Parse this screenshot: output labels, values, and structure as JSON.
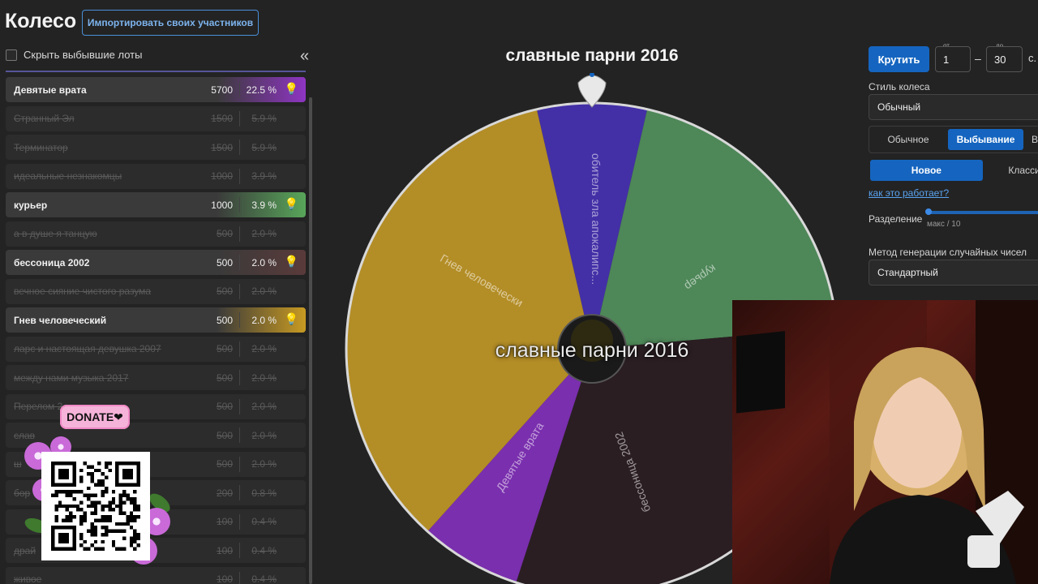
{
  "header": {
    "title": "Колесо",
    "import_label": "Импортировать своих участников"
  },
  "list_controls": {
    "hide_label": "Скрыть выбывшие лоты"
  },
  "lots": [
    {
      "name": "Девятые врата",
      "amount": "5700",
      "percent": "22.5 %",
      "active": true,
      "color": "#8e35c2"
    },
    {
      "name": "Странный Эл",
      "amount": "1500",
      "percent": "5.9 %",
      "active": false
    },
    {
      "name": "Терминатор",
      "amount": "1500",
      "percent": "5.9 %",
      "active": false
    },
    {
      "name": "идеальные незнакомцы",
      "amount": "1000",
      "percent": "3.9 %",
      "active": false
    },
    {
      "name": "курьер",
      "amount": "1000",
      "percent": "3.9 %",
      "active": true,
      "color": "#58a65a"
    },
    {
      "name": "а в душе я танцую",
      "amount": "500",
      "percent": "2.0 %",
      "active": false
    },
    {
      "name": "бессоница 2002",
      "amount": "500",
      "percent": "2.0 %",
      "active": true,
      "color": "#5a3a3a"
    },
    {
      "name": "вечное сияние чистого разума",
      "amount": "500",
      "percent": "2.0 %",
      "active": false
    },
    {
      "name": "Гнев человеческий",
      "amount": "500",
      "percent": "2.0 %",
      "active": true,
      "color": "#c89a22"
    },
    {
      "name": "ларс и настоящая девушка 2007",
      "amount": "500",
      "percent": "2.0 %",
      "active": false
    },
    {
      "name": "между нами музыка 2017",
      "amount": "500",
      "percent": "2.0 %",
      "active": false
    },
    {
      "name": "Перелом 2",
      "amount": "500",
      "percent": "2.0 %",
      "active": false
    },
    {
      "name": "слав",
      "amount": "500",
      "percent": "2.0 %",
      "active": false
    },
    {
      "name": "ш",
      "amount": "500",
      "percent": "2.0 %",
      "active": false
    },
    {
      "name": "бор",
      "amount": "200",
      "percent": "0.8 %",
      "active": false
    },
    {
      "name": "",
      "amount": "100",
      "percent": "0.4 %",
      "active": false
    },
    {
      "name": "драй",
      "amount": "100",
      "percent": "0.4 %",
      "active": false
    },
    {
      "name": "живое",
      "amount": "100",
      "percent": "0.4 %",
      "active": false
    }
  ],
  "donate": {
    "label": "DONATE❤"
  },
  "wheel": {
    "title": "славные парни 2016",
    "winner_text": "славные парни 2016",
    "segments": [
      {
        "label": "обитель зла апокалипс...",
        "color": "#4330a6"
      },
      {
        "label": "курьер",
        "color": "#4e8758"
      },
      {
        "label": "бессоница 2002",
        "color": "#2a1e22"
      },
      {
        "label": "Девятые врата",
        "color": "#7a2fae"
      },
      {
        "label": "Гнев человечески",
        "color": "#b38d26"
      }
    ]
  },
  "controls": {
    "spin_label": "Крутить",
    "from_label": "от",
    "from_value": "1",
    "to_label": "до",
    "to_value": "30",
    "seconds_label": "с.",
    "wheel_style_label": "Стиль колеса",
    "wheel_style_value": "Обычный",
    "mode_tabs": [
      {
        "label": "Обычное",
        "selected": false
      },
      {
        "label": "Выбывание",
        "selected": true
      },
      {
        "label": "В",
        "selected": false
      }
    ],
    "variant_tabs": [
      {
        "label": "Новое",
        "selected": true
      },
      {
        "label": "Классич",
        "selected": false
      }
    ],
    "how_link": "как это работает?",
    "split_label": "Разделение",
    "split_max": "макс / 10",
    "rng_label": "Метод генерации случайных чисел",
    "rng_value": "Стандартный"
  }
}
